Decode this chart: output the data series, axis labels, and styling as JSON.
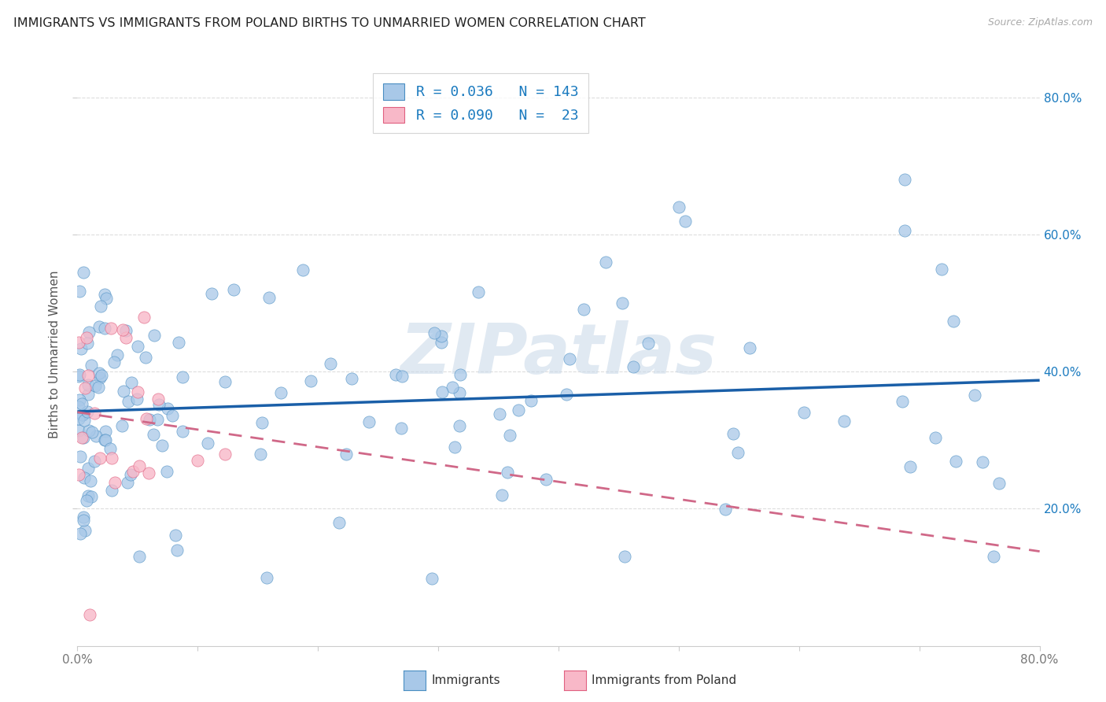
{
  "title": "IMMIGRANTS VS IMMIGRANTS FROM POLAND BIRTHS TO UNMARRIED WOMEN CORRELATION CHART",
  "source": "Source: ZipAtlas.com",
  "ylabel": "Births to Unmarried Women",
  "xlim": [
    0.0,
    0.8
  ],
  "ylim": [
    0.0,
    0.85
  ],
  "xtick_vals": [
    0.0,
    0.1,
    0.2,
    0.3,
    0.4,
    0.5,
    0.6,
    0.7,
    0.8
  ],
  "xtick_labels_sparse": [
    "0.0%",
    "",
    "",
    "",
    "",
    "",
    "",
    "",
    "80.0%"
  ],
  "ytick_vals": [
    0.2,
    0.4,
    0.6,
    0.8
  ],
  "ytick_labels": [
    "20.0%",
    "40.0%",
    "60.0%",
    "80.0%"
  ],
  "R_blue": 0.036,
  "N_blue": 143,
  "R_pink": 0.09,
  "N_pink": 23,
  "color_blue_fill": "#a8c8e8",
  "color_blue_edge": "#4a8ec2",
  "color_pink_fill": "#f8b8c8",
  "color_pink_edge": "#e06080",
  "color_line_blue": "#1a5fa8",
  "color_line_pink": "#d06888",
  "color_text_blue": "#1a7abf",
  "watermark": "ZIPatlas",
  "legend_label_blue": "R = 0.036   N = 143",
  "legend_label_pink": "R = 0.090   N =  23",
  "bottom_legend_label1": "Immigrants",
  "bottom_legend_label2": "Immigrants from Poland",
  "grid_color": "#dddddd",
  "tick_label_color": "#777777",
  "title_color": "#222222",
  "ylabel_color": "#555555"
}
